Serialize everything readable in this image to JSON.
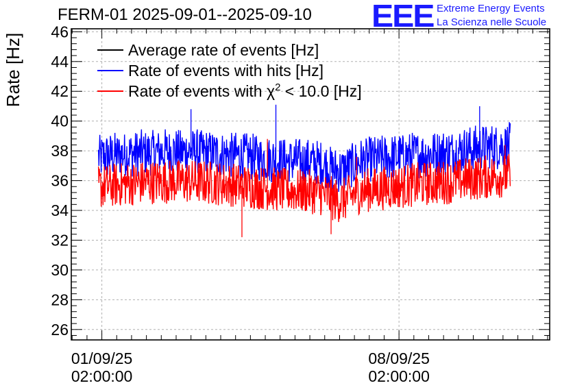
{
  "chart_data": {
    "type": "line",
    "title": "FERM-01 2025-09-01--2025-09-10",
    "ylabel": "Rate [Hz]",
    "xlabel": "",
    "ylim": [
      25.3,
      46.2
    ],
    "y_ticks": [
      26,
      28,
      30,
      32,
      34,
      36,
      38,
      40,
      42,
      44,
      46
    ],
    "x_ticks": [
      {
        "line1": "01/09/25",
        "line2": "02:00:00",
        "day": 0
      },
      {
        "line1": "08/09/25",
        "line2": "02:00:00",
        "day": 7
      }
    ],
    "xlim_days": [
      -0.72,
      10.55
    ],
    "data_range_days": [
      -0.08,
      9.62
    ],
    "grid": true,
    "legend_position": "top-left",
    "series": [
      {
        "name": "Average rate of events [Hz]",
        "color": "#000000",
        "mean": 37.6,
        "amplitude_low": 0.7,
        "amplitude_high": 0.7
      },
      {
        "name": "Rate of events with hits [Hz]",
        "color": "#0000ff",
        "mean": 37.6,
        "amplitude_low": 1.5,
        "amplitude_high": 1.6
      },
      {
        "name": "Rate of events with χ² < 10.0 [Hz]",
        "color": "#ff0000",
        "mean": 35.6,
        "amplitude_low": 1.5,
        "amplitude_high": 1.5
      }
    ],
    "legend_labels": [
      {
        "prefix": "Average rate of events [Hz]",
        "sup": "",
        "suffix": ""
      },
      {
        "prefix": "Rate of events with hits [Hz]",
        "sup": "",
        "suffix": ""
      },
      {
        "prefix": "Rate of events with χ",
        "sup": "2",
        "suffix": " < 10.0 [Hz]"
      }
    ]
  },
  "logo": {
    "mark": "EEE",
    "line1": "Extreme Energy Events",
    "line2": "La Scienza nelle Scuole"
  }
}
